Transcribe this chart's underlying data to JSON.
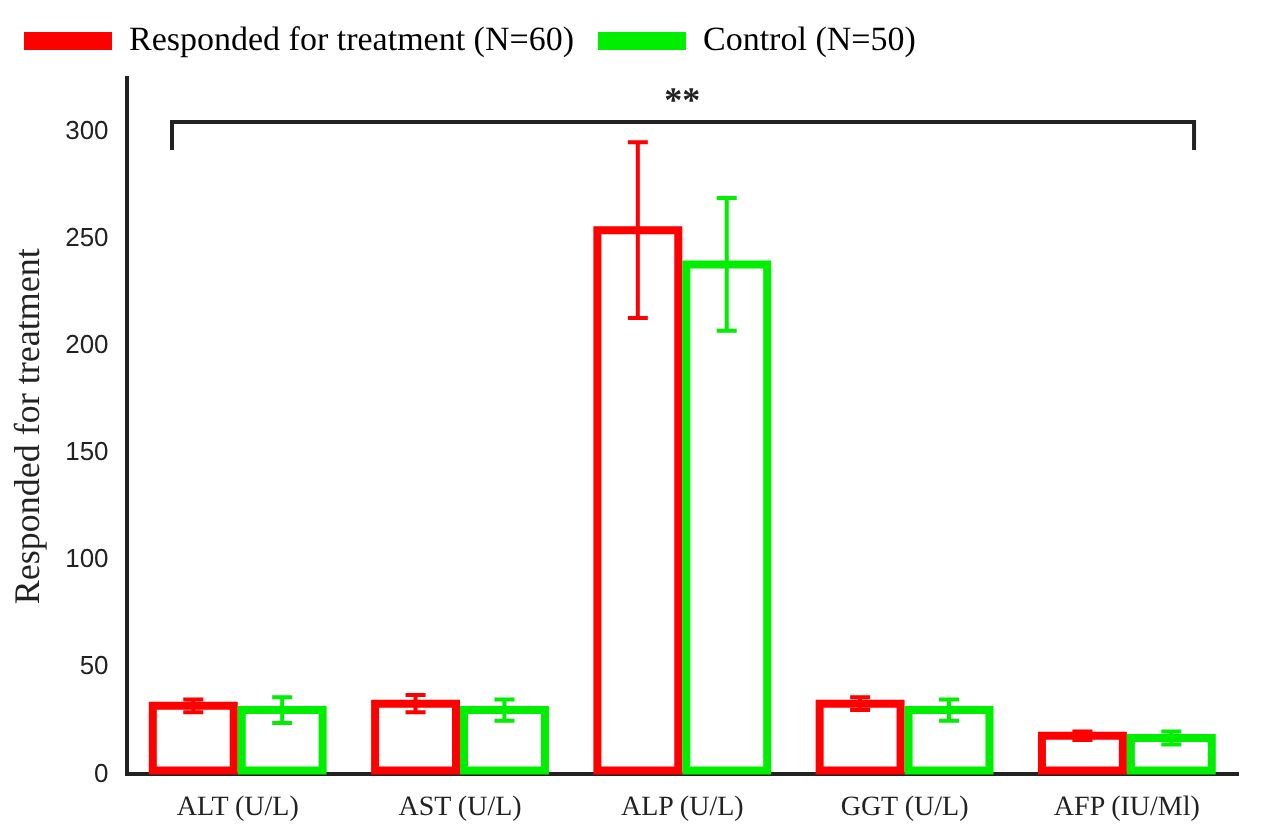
{
  "chart_data": {
    "type": "bar",
    "ylabel": "Responded for treatment",
    "categories": [
      "ALT (U/L)",
      "AST (U/L)",
      "ALP (U/L)",
      "GGT (U/L)",
      "AFP (IU/Ml)"
    ],
    "series": [
      {
        "name": "Responded for treatment (N=60)",
        "color": "#ff0000",
        "values": [
          32,
          33,
          254,
          33,
          18
        ],
        "errors": [
          3,
          4,
          41,
          3,
          2
        ]
      },
      {
        "name": "Control (N=50)",
        "color": "#00ee00",
        "values": [
          30,
          30,
          238,
          30,
          17
        ],
        "errors": [
          6,
          5,
          31,
          5,
          3
        ]
      }
    ],
    "ylim": [
      0,
      325
    ],
    "yticks": [
      0,
      50,
      100,
      150,
      200,
      250,
      300
    ],
    "grid": false,
    "legend": "top",
    "annotations": [
      "**"
    ]
  }
}
